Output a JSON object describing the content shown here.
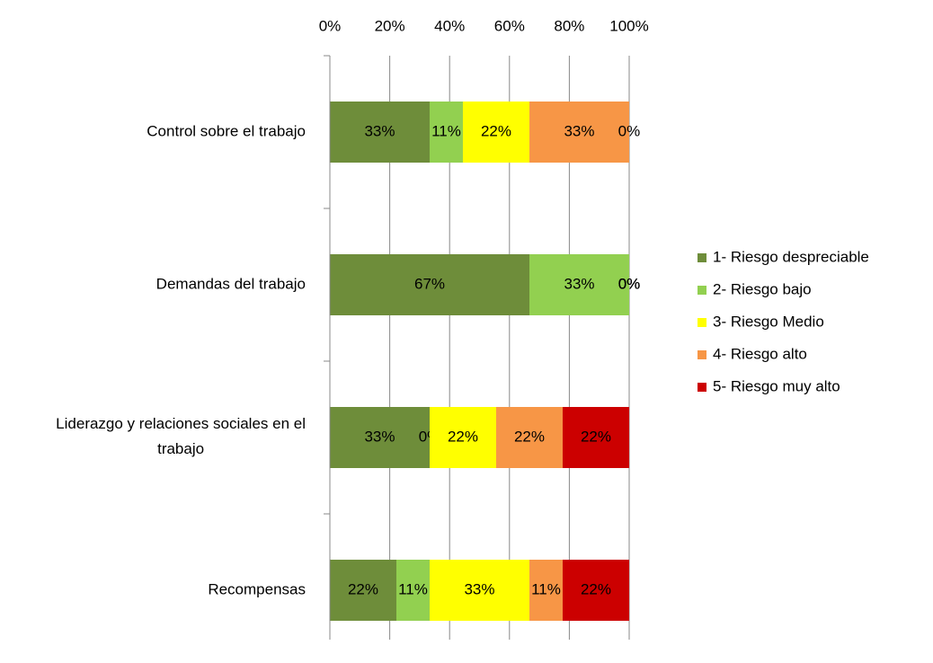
{
  "chart_data": {
    "type": "stacked_barh",
    "categories": [
      "Control sobre el trabajo",
      "Demandas del trabajo",
      "Liderazgo y relaciones sociales en el trabajo",
      "Recompensas"
    ],
    "series": [
      {
        "name": "1- Riesgo despreciable",
        "color": "#6e8d3a",
        "values": [
          33.33,
          66.67,
          33.33,
          22.22
        ],
        "value_labels": [
          "33%",
          "67%",
          "33%",
          "22%"
        ]
      },
      {
        "name": "2- Riesgo bajo",
        "color": "#92d050",
        "values": [
          11.11,
          33.33,
          0,
          11.11
        ],
        "value_labels": [
          "11%",
          "33%",
          "0%",
          "11%"
        ]
      },
      {
        "name": "3- Riesgo Medio",
        "color": "#ffff00",
        "values": [
          22.22,
          0,
          22.22,
          33.33
        ],
        "value_labels": [
          "22%",
          "0%",
          "22%",
          "33%"
        ]
      },
      {
        "name": "4- Riesgo alto",
        "color": "#f79646",
        "values": [
          33.33,
          0,
          22.22,
          11.11
        ],
        "value_labels": [
          "33%",
          "0%",
          "22%",
          "11%"
        ]
      },
      {
        "name": "5- Riesgo muy alto",
        "color": "#cc0000",
        "values": [
          0,
          0,
          22.22,
          22.22
        ],
        "value_labels": [
          "0%",
          "0%",
          "22%",
          "22%"
        ]
      }
    ],
    "xlim": [
      0,
      100
    ],
    "xticks": [
      {
        "value": 0,
        "label": "0%"
      },
      {
        "value": 20,
        "label": "20%"
      },
      {
        "value": 40,
        "label": "40%"
      },
      {
        "value": 60,
        "label": "60%"
      },
      {
        "value": 80,
        "label": "80%"
      },
      {
        "value": 100,
        "label": "100%"
      }
    ],
    "grid": true,
    "legend": "right"
  }
}
